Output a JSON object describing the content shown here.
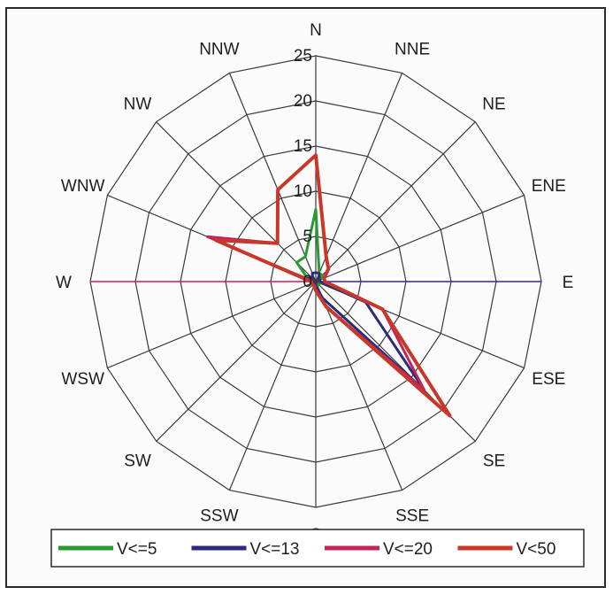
{
  "chart_data": {
    "type": "radar",
    "directions": [
      "N",
      "NNE",
      "NE",
      "ENE",
      "E",
      "ESE",
      "SE",
      "SSE",
      "S",
      "SSW",
      "SW",
      "WSW",
      "W",
      "WNW",
      "NW",
      "NNW"
    ],
    "radial_ticks": [
      "0",
      "5",
      "10",
      "15",
      "20",
      "25"
    ],
    "rmax": 25,
    "grid": true,
    "legend_position": "bottom",
    "series": [
      {
        "name": "V<=5",
        "color": "#2a9a33",
        "values": [
          8,
          1,
          1,
          0.5,
          0.5,
          0.5,
          0.5,
          0.5,
          0.5,
          0.3,
          0.3,
          0.3,
          0.3,
          1,
          3,
          3
        ]
      },
      {
        "name": "V<=13",
        "color": "#2b2b7a",
        "values": [
          1,
          1,
          0.5,
          0.5,
          0.5,
          6,
          17,
          2,
          0.5,
          0.3,
          0.3,
          0.3,
          0.3,
          1,
          0.5,
          1
        ]
      },
      {
        "name": "V<=20",
        "color": "#c2255c",
        "values": [
          14,
          3,
          2,
          1,
          1,
          8,
          17,
          3,
          1,
          0.5,
          0.5,
          0.5,
          0.5,
          13,
          6,
          11
        ]
      },
      {
        "name": "V<50",
        "color": "#c8382a",
        "values": [
          14,
          3,
          2,
          1,
          1,
          8,
          21,
          3,
          1,
          0.5,
          0.5,
          0.5,
          0.5,
          12,
          6,
          11
        ]
      }
    ]
  }
}
